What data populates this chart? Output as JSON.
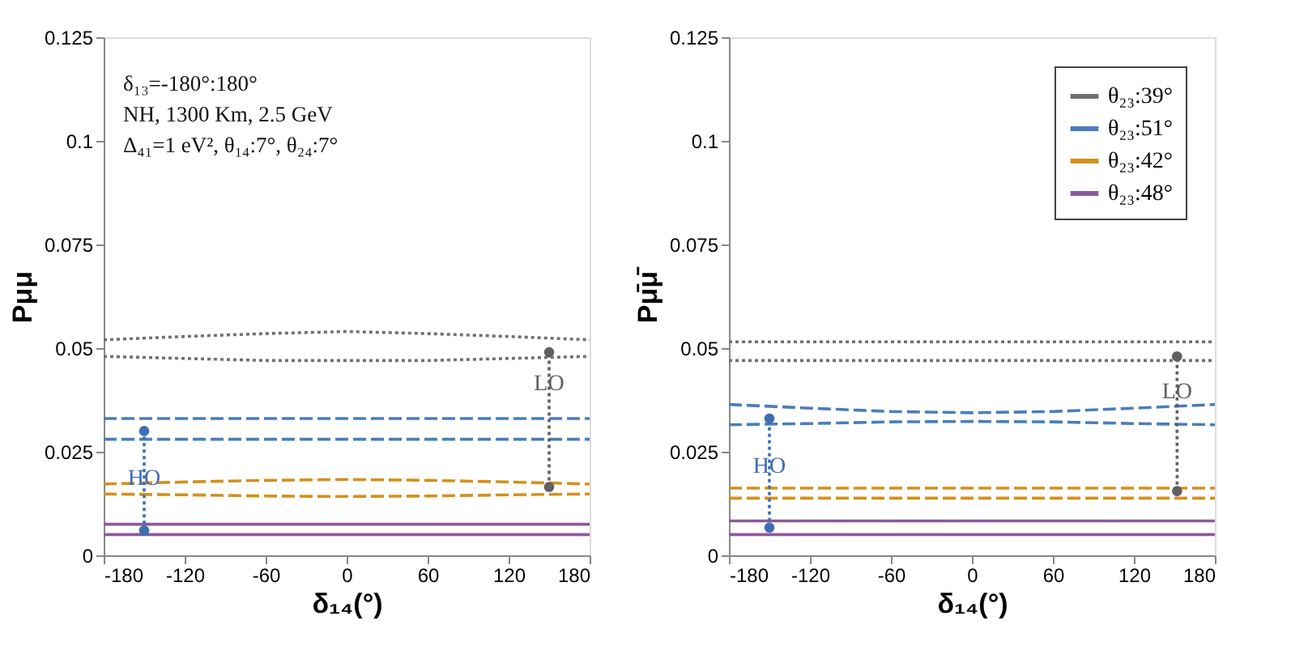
{
  "chart_data": [
    {
      "type": "line",
      "xlabel": "δ₁₄(°)",
      "ylabel": "Pμμ",
      "x": [
        -180,
        -120,
        -60,
        0,
        60,
        120,
        180
      ],
      "xlim": [
        -180,
        180
      ],
      "ylim": [
        0,
        0.125
      ],
      "xticks": [
        -180,
        -120,
        -60,
        0,
        60,
        120,
        180
      ],
      "yticks": [
        0,
        0.025,
        0.05,
        0.075,
        0.1,
        0.125
      ],
      "grid": false,
      "legend": false,
      "annotations": [
        "δ₁₃=-180°:180°",
        "NH, 1300 Km, 2.5 GeV",
        "Δ₄₁=1 eV², θ₁₄:7°, θ₂₄:7°",
        {
          "text": "HO",
          "x": -150,
          "y": 0.0185
        },
        {
          "text": "LO",
          "x": 150,
          "y": 0.0415
        }
      ],
      "series": [
        {
          "color": "#707070",
          "line_style": "dotted",
          "values": [
            0.052,
            0.0528,
            0.0535,
            0.054,
            0.0535,
            0.0528,
            0.052
          ]
        },
        {
          "color": "#707070",
          "line_style": "dotted",
          "values": [
            0.048,
            0.0475,
            0.047,
            0.047,
            0.047,
            0.0475,
            0.048
          ]
        },
        {
          "color": "#4a7ebb",
          "line_style": "dashed",
          "values": [
            0.033,
            0.033,
            0.033,
            0.033,
            0.033,
            0.033,
            0.033
          ]
        },
        {
          "color": "#4a7ebb",
          "line_style": "dashed",
          "values": [
            0.028,
            0.028,
            0.028,
            0.028,
            0.028,
            0.028,
            0.028
          ]
        },
        {
          "color": "#d4901c",
          "line_style": "dashed",
          "values": [
            0.0172,
            0.0177,
            0.0181,
            0.0183,
            0.0181,
            0.0177,
            0.0172
          ]
        },
        {
          "color": "#d4901c",
          "line_style": "dashed",
          "values": [
            0.0148,
            0.0146,
            0.0143,
            0.0142,
            0.0143,
            0.0146,
            0.0148
          ]
        },
        {
          "color": "#8e5a9a",
          "line_style": "solid",
          "values": [
            0.0075,
            0.0075,
            0.0075,
            0.0075,
            0.0075,
            0.0075,
            0.0075
          ]
        },
        {
          "color": "#8e5a9a",
          "line_style": "solid",
          "values": [
            0.005,
            0.005,
            0.005,
            0.005,
            0.005,
            0.005,
            0.005
          ]
        },
        {
          "color": "#3d6fb3",
          "line_style": "dotted",
          "marker": "circle",
          "x": [
            -150,
            -150
          ],
          "values": [
            0.006,
            0.03
          ]
        },
        {
          "color": "#606060",
          "line_style": "dotted",
          "marker": "circle",
          "x": [
            150,
            150
          ],
          "values": [
            0.0165,
            0.049
          ]
        }
      ]
    },
    {
      "type": "line",
      "xlabel": "δ₁₄(°)",
      "ylabel": "Pμ̄μ̄",
      "x": [
        -180,
        -120,
        -60,
        0,
        60,
        120,
        180
      ],
      "xlim": [
        -180,
        180
      ],
      "ylim": [
        0,
        0.125
      ],
      "xticks": [
        -180,
        -120,
        -60,
        0,
        60,
        120,
        180
      ],
      "yticks": [
        0,
        0.025,
        0.05,
        0.075,
        0.1,
        0.125
      ],
      "grid": false,
      "legend": "top right",
      "annotations": [
        {
          "text": "HO",
          "x": -150,
          "y": 0.0215
        },
        {
          "text": "LO",
          "x": 152,
          "y": 0.0395
        }
      ],
      "series": [
        {
          "name": "θ₂₃:39°",
          "color": "#707070",
          "line_style": "dotted",
          "values": [
            0.0515,
            0.0515,
            0.0515,
            0.0515,
            0.0515,
            0.0515,
            0.0515
          ]
        },
        {
          "color": "#707070",
          "line_style": "dotted",
          "values": [
            0.047,
            0.047,
            0.047,
            0.047,
            0.047,
            0.047,
            0.047
          ]
        },
        {
          "name": "θ₂₃:51°",
          "color": "#4a7ebb",
          "line_style": "dashed",
          "values": [
            0.0364,
            0.0355,
            0.0347,
            0.0344,
            0.0347,
            0.0355,
            0.0364
          ]
        },
        {
          "color": "#4a7ebb",
          "line_style": "dashed",
          "values": [
            0.0315,
            0.0318,
            0.0322,
            0.0323,
            0.0322,
            0.0318,
            0.0315
          ]
        },
        {
          "name": "θ₂₃:42°",
          "color": "#d4901c",
          "line_style": "dashed",
          "values": [
            0.0162,
            0.0162,
            0.0162,
            0.0162,
            0.0162,
            0.0162,
            0.0162
          ]
        },
        {
          "color": "#d4901c",
          "line_style": "dashed",
          "values": [
            0.0138,
            0.0138,
            0.0138,
            0.0138,
            0.0138,
            0.0138,
            0.0138
          ]
        },
        {
          "name": "θ₂₃:48°",
          "color": "#8e5a9a",
          "line_style": "solid",
          "values": [
            0.0083,
            0.0083,
            0.0083,
            0.0083,
            0.0083,
            0.0083,
            0.0083
          ]
        },
        {
          "color": "#8e5a9a",
          "line_style": "solid",
          "values": [
            0.005,
            0.005,
            0.005,
            0.005,
            0.005,
            0.005,
            0.005
          ]
        },
        {
          "color": "#3d6fb3",
          "line_style": "dotted",
          "marker": "circle",
          "x": [
            -150,
            -150
          ],
          "values": [
            0.0067,
            0.033
          ]
        },
        {
          "color": "#606060",
          "line_style": "dotted",
          "marker": "circle",
          "x": [
            152,
            152
          ],
          "values": [
            0.0155,
            0.048
          ]
        }
      ]
    }
  ]
}
